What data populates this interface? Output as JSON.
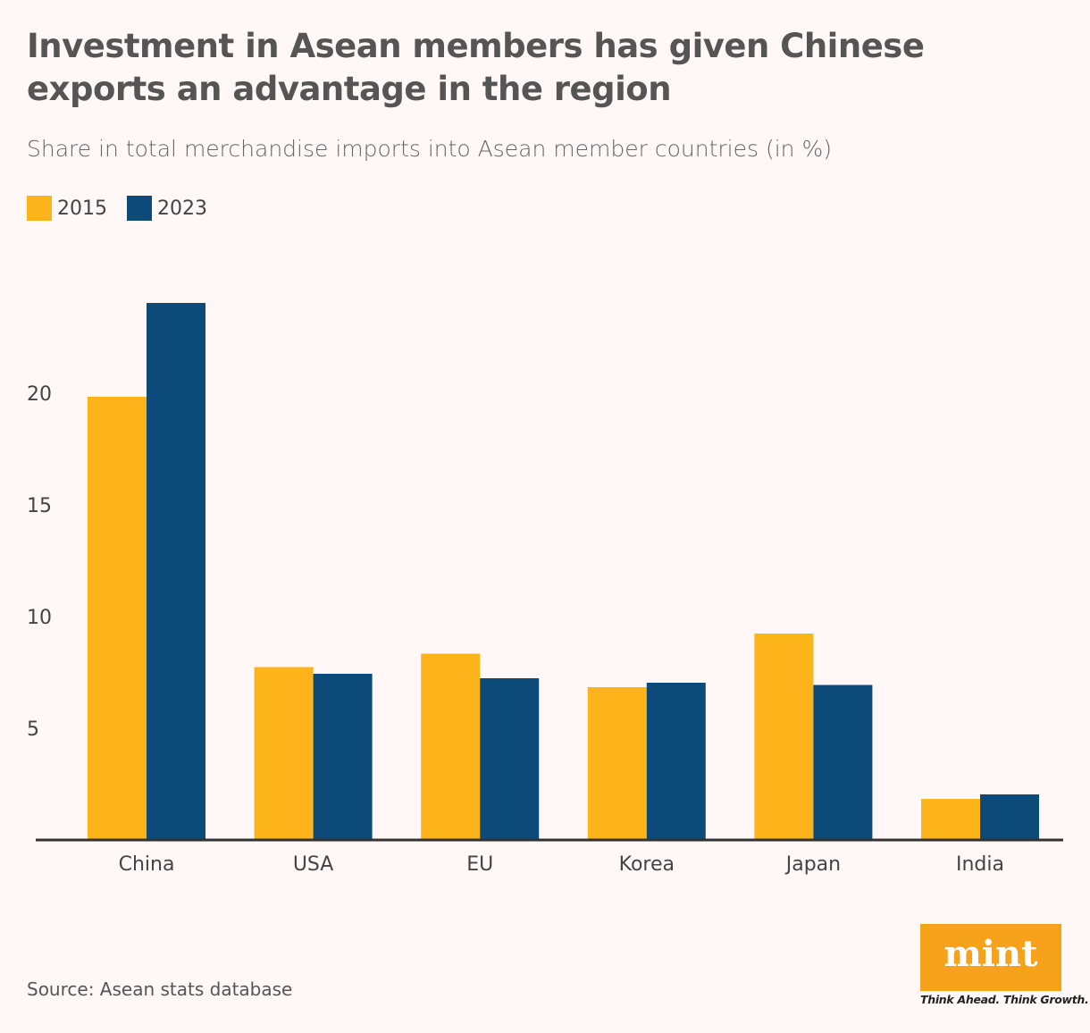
{
  "chart_data": {
    "type": "bar",
    "title": "Investment in Asean members has given Chinese exports an advantage in the region",
    "subtitle": "Share in total merchandise imports into Asean member countries (in %)",
    "categories": [
      "China",
      "USA",
      "EU",
      "Korea",
      "Japan",
      "India"
    ],
    "series": [
      {
        "name": "2015",
        "color": "#fdb31a",
        "values": [
          19.8,
          7.7,
          8.3,
          6.8,
          9.2,
          1.8
        ]
      },
      {
        "name": "2023",
        "color": "#0c4a7a",
        "values": [
          24.0,
          7.4,
          7.2,
          7.0,
          6.9,
          2.0
        ]
      }
    ],
    "yticks": [
      "5",
      "10",
      "15",
      "20"
    ],
    "ylim": [
      0,
      25
    ],
    "grid": false,
    "legend_placement": "top-left",
    "xlabel": "",
    "ylabel": ""
  },
  "source": "Source: Asean stats database",
  "logo": {
    "text": "mint",
    "tagline": "Think Ahead. Think Growth."
  }
}
